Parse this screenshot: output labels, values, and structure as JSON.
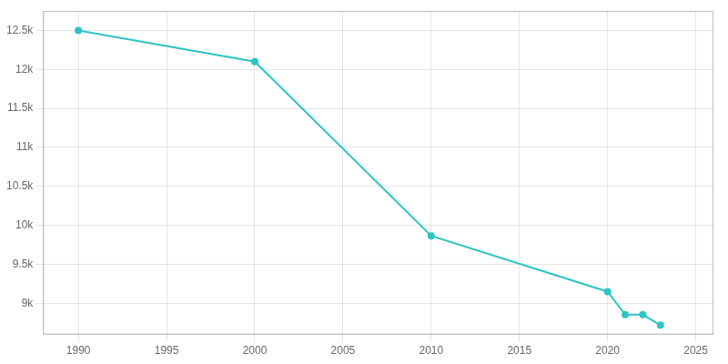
{
  "chart_data": {
    "type": "line",
    "x": [
      1990,
      2000,
      2010,
      2020,
      2021,
      2022,
      2023
    ],
    "values": [
      12500,
      12100,
      9865,
      9150,
      8854,
      8854,
      8720
    ],
    "color": "#2ec4c4",
    "marker": "circle",
    "xlim": [
      1988,
      2026
    ],
    "xticks": [
      1990,
      1995,
      2000,
      2005,
      2010,
      2015,
      2020,
      2025
    ],
    "ylim": [
      8600,
      12750
    ],
    "yticks": [
      {
        "value": 9000,
        "label": "9k"
      },
      {
        "value": 9500,
        "label": "9.5k"
      },
      {
        "value": 10000,
        "label": "10k"
      },
      {
        "value": 10500,
        "label": "10.5k"
      },
      {
        "value": 11000,
        "label": "11k"
      },
      {
        "value": 11500,
        "label": "11.5k"
      },
      {
        "value": 12000,
        "label": "12k"
      },
      {
        "value": 12500,
        "label": "12.5k"
      }
    ],
    "grid": true
  }
}
